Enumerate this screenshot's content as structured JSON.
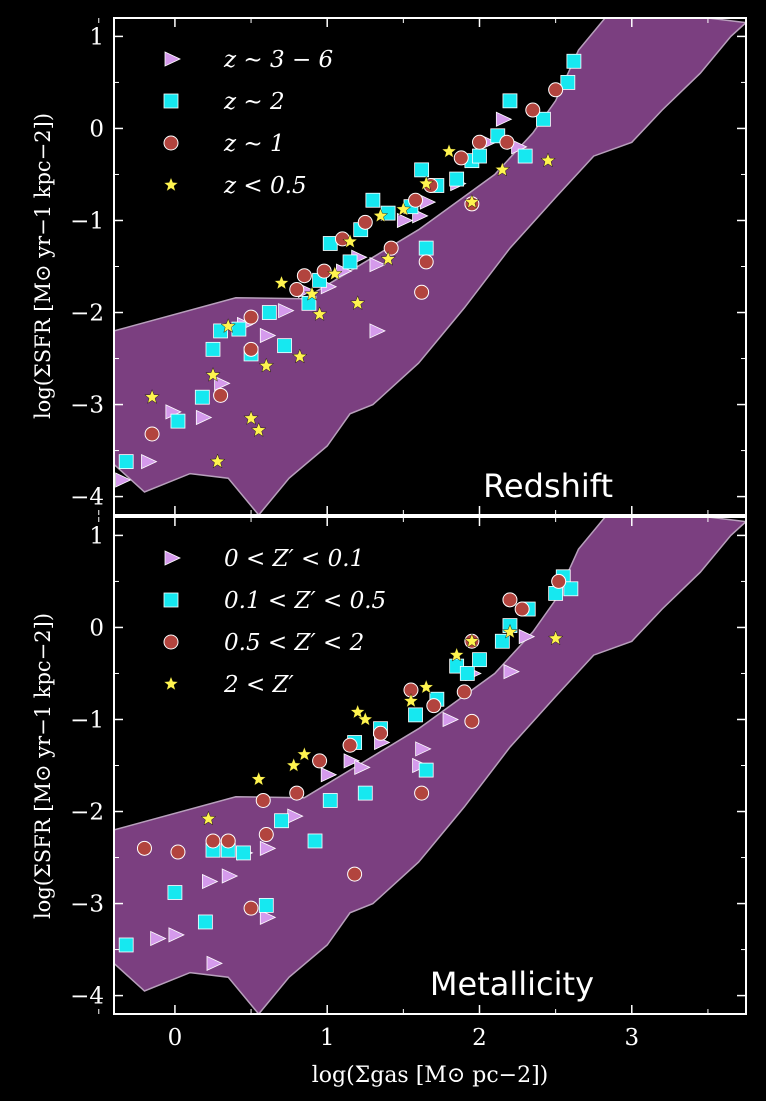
{
  "chart_data": {
    "type": "scatter",
    "xlabel": "log(Σgas [M⊙ pc−2])",
    "ylabel": "log(ΣSFR [M⊙ yr−1 kpc−2])",
    "xlim": [
      -0.4,
      3.75
    ],
    "ylim": [
      -4.2,
      1.2
    ],
    "x_ticks": [
      "0",
      "1",
      "2",
      "3"
    ],
    "y_ticks": [
      "−4",
      "−3",
      "−2",
      "−1",
      "0",
      "1"
    ],
    "grid": false,
    "colors": {
      "background": "#000000",
      "band": "#7b3f80",
      "band_edge": "#b8a0bc",
      "triangle": "#d59aec",
      "square": "#16e8f0",
      "circle": "#b2443e",
      "star": "#fff44f"
    },
    "band": {
      "upper": [
        [
          -0.4,
          -2.2
        ],
        [
          0.4,
          -1.84
        ],
        [
          0.85,
          -1.85
        ],
        [
          1.3,
          -1.4
        ],
        [
          1.6,
          -1.1
        ],
        [
          2.1,
          -0.5
        ],
        [
          2.35,
          -0.05
        ],
        [
          2.5,
          0.3
        ],
        [
          2.65,
          0.85
        ],
        [
          2.85,
          1.25
        ],
        [
          3.0,
          1.3
        ]
      ],
      "lower": [
        [
          3.75,
          1.15
        ],
        [
          3.65,
          1.0
        ],
        [
          3.45,
          0.6
        ],
        [
          3.2,
          0.2
        ],
        [
          3.0,
          -0.15
        ],
        [
          2.75,
          -0.3
        ],
        [
          2.5,
          -0.75
        ],
        [
          2.2,
          -1.3
        ],
        [
          1.9,
          -1.95
        ],
        [
          1.6,
          -2.55
        ],
        [
          1.3,
          -3.0
        ],
        [
          1.15,
          -3.1
        ],
        [
          1.0,
          -3.45
        ],
        [
          0.75,
          -3.8
        ],
        [
          0.55,
          -4.2
        ],
        [
          0.35,
          -3.8
        ],
        [
          0.1,
          -3.75
        ],
        [
          -0.2,
          -3.95
        ],
        [
          -0.4,
          -3.65
        ]
      ]
    },
    "panels": [
      {
        "label": "Redshift",
        "legend_position": "top-left",
        "series": [
          {
            "name": "z ∼ 3 − 6",
            "marker": "triangle",
            "points": [
              [
                -0.35,
                -3.82
              ],
              [
                -0.18,
                -3.62
              ],
              [
                -0.02,
                -3.08
              ],
              [
                0.18,
                -3.14
              ],
              [
                0.3,
                -2.77
              ],
              [
                0.45,
                -2.13
              ],
              [
                0.6,
                -2.25
              ],
              [
                0.72,
                -1.98
              ],
              [
                0.85,
                -1.76
              ],
              [
                1.0,
                -1.72
              ],
              [
                1.1,
                -1.55
              ],
              [
                1.2,
                -1.4
              ],
              [
                1.32,
                -1.48
              ],
              [
                1.32,
                -2.2
              ],
              [
                1.5,
                -1.0
              ],
              [
                1.6,
                -0.95
              ],
              [
                1.65,
                -0.8
              ],
              [
                1.85,
                -0.6
              ],
              [
                1.95,
                -0.35
              ],
              [
                2.05,
                -0.15
              ],
              [
                2.15,
                0.1
              ],
              [
                2.25,
                -0.2
              ]
            ]
          },
          {
            "name": "z ∼ 2",
            "marker": "square",
            "points": [
              [
                -0.32,
                -3.62
              ],
              [
                0.02,
                -3.18
              ],
              [
                0.18,
                -2.92
              ],
              [
                0.25,
                -2.4
              ],
              [
                0.3,
                -2.2
              ],
              [
                0.42,
                -2.18
              ],
              [
                0.5,
                -2.45
              ],
              [
                0.62,
                -2.0
              ],
              [
                0.72,
                -2.36
              ],
              [
                0.88,
                -1.9
              ],
              [
                0.95,
                -1.65
              ],
              [
                1.02,
                -1.25
              ],
              [
                1.15,
                -1.45
              ],
              [
                1.22,
                -1.1
              ],
              [
                1.3,
                -0.78
              ],
              [
                1.4,
                -0.92
              ],
              [
                1.55,
                -0.85
              ],
              [
                1.62,
                -0.45
              ],
              [
                1.65,
                -1.3
              ],
              [
                1.72,
                -0.62
              ],
              [
                1.85,
                -0.55
              ],
              [
                1.95,
                -0.35
              ],
              [
                2.0,
                -0.3
              ],
              [
                2.12,
                -0.08
              ],
              [
                2.2,
                0.3
              ],
              [
                2.3,
                -0.3
              ],
              [
                2.42,
                0.1
              ],
              [
                2.58,
                0.5
              ],
              [
                2.62,
                0.73
              ]
            ]
          },
          {
            "name": "z ∼ 1",
            "marker": "circle",
            "points": [
              [
                -0.15,
                -3.32
              ],
              [
                0.3,
                -2.9
              ],
              [
                0.5,
                -2.05
              ],
              [
                0.5,
                -2.4
              ],
              [
                0.8,
                -1.75
              ],
              [
                0.85,
                -1.6
              ],
              [
                0.98,
                -1.55
              ],
              [
                1.1,
                -1.2
              ],
              [
                1.25,
                -1.02
              ],
              [
                1.42,
                -1.3
              ],
              [
                1.58,
                -0.78
              ],
              [
                1.62,
                -1.78
              ],
              [
                1.65,
                -1.45
              ],
              [
                1.68,
                -0.62
              ],
              [
                1.88,
                -0.32
              ],
              [
                1.95,
                -0.82
              ],
              [
                2.0,
                -0.15
              ],
              [
                2.18,
                -0.15
              ],
              [
                2.35,
                0.2
              ],
              [
                2.5,
                0.42
              ]
            ]
          },
          {
            "name": "z < 0.5",
            "marker": "star",
            "points": [
              [
                -0.15,
                -2.92
              ],
              [
                0.25,
                -2.68
              ],
              [
                0.35,
                -2.15
              ],
              [
                0.5,
                -3.15
              ],
              [
                0.55,
                -3.28
              ],
              [
                0.6,
                -2.58
              ],
              [
                0.7,
                -1.68
              ],
              [
                0.82,
                -2.48
              ],
              [
                0.9,
                -1.8
              ],
              [
                0.95,
                -2.02
              ],
              [
                1.05,
                -1.58
              ],
              [
                1.15,
                -1.23
              ],
              [
                1.2,
                -1.9
              ],
              [
                1.35,
                -0.95
              ],
              [
                1.4,
                -1.42
              ],
              [
                1.5,
                -0.88
              ],
              [
                1.65,
                -0.6
              ],
              [
                1.8,
                -0.25
              ],
              [
                1.95,
                -0.8
              ],
              [
                2.15,
                -0.45
              ],
              [
                2.45,
                -0.35
              ],
              [
                0.28,
                -3.62
              ]
            ]
          }
        ]
      },
      {
        "label": "Metallicity",
        "legend_position": "top-left",
        "series": [
          {
            "name": "0 < Z′ < 0.1",
            "marker": "triangle",
            "points": [
              [
                -0.12,
                -3.38
              ],
              [
                0.0,
                -3.34
              ],
              [
                0.22,
                -2.76
              ],
              [
                0.25,
                -3.65
              ],
              [
                0.35,
                -2.7
              ],
              [
                0.45,
                -2.45
              ],
              [
                0.6,
                -2.4
              ],
              [
                0.6,
                -3.15
              ],
              [
                0.78,
                -2.05
              ],
              [
                1.0,
                -1.6
              ],
              [
                1.15,
                -1.45
              ],
              [
                1.22,
                -1.52
              ],
              [
                1.35,
                -1.25
              ],
              [
                1.6,
                -1.5
              ],
              [
                1.62,
                -1.32
              ],
              [
                1.8,
                -1.0
              ],
              [
                1.95,
                -0.5
              ],
              [
                2.2,
                -0.48
              ],
              [
                2.3,
                -0.1
              ]
            ]
          },
          {
            "name": "0.1 < Z′ < 0.5",
            "marker": "square",
            "points": [
              [
                -0.32,
                -3.45
              ],
              [
                0.0,
                -2.88
              ],
              [
                0.2,
                -3.2
              ],
              [
                0.25,
                -2.42
              ],
              [
                0.35,
                -2.42
              ],
              [
                0.45,
                -2.45
              ],
              [
                0.6,
                -3.02
              ],
              [
                0.7,
                -2.1
              ],
              [
                0.92,
                -2.32
              ],
              [
                1.02,
                -1.88
              ],
              [
                1.18,
                -1.25
              ],
              [
                1.25,
                -1.8
              ],
              [
                1.35,
                -1.1
              ],
              [
                1.58,
                -0.95
              ],
              [
                1.65,
                -1.55
              ],
              [
                1.72,
                -0.78
              ],
              [
                1.85,
                -0.42
              ],
              [
                1.92,
                -0.5
              ],
              [
                2.0,
                -0.35
              ],
              [
                2.15,
                -0.15
              ],
              [
                2.2,
                0.02
              ],
              [
                2.32,
                0.2
              ],
              [
                2.5,
                0.37
              ],
              [
                2.55,
                0.55
              ],
              [
                2.6,
                0.42
              ]
            ]
          },
          {
            "name": "0.5 < Z′ < 2",
            "marker": "circle",
            "points": [
              [
                -0.2,
                -2.4
              ],
              [
                0.02,
                -2.44
              ],
              [
                0.25,
                -2.32
              ],
              [
                0.35,
                -2.32
              ],
              [
                0.5,
                -3.05
              ],
              [
                0.58,
                -1.88
              ],
              [
                0.6,
                -2.25
              ],
              [
                0.8,
                -1.8
              ],
              [
                0.95,
                -1.45
              ],
              [
                1.15,
                -1.28
              ],
              [
                1.18,
                -2.68
              ],
              [
                1.35,
                -1.15
              ],
              [
                1.55,
                -0.68
              ],
              [
                1.62,
                -1.8
              ],
              [
                1.7,
                -0.85
              ],
              [
                1.9,
                -0.7
              ],
              [
                1.95,
                -1.02
              ],
              [
                1.95,
                -0.15
              ],
              [
                2.2,
                0.3
              ],
              [
                2.28,
                0.2
              ],
              [
                2.52,
                0.5
              ]
            ]
          },
          {
            "name": "2 < Z′",
            "marker": "star",
            "points": [
              [
                0.22,
                -2.08
              ],
              [
                0.55,
                -1.65
              ],
              [
                0.78,
                -1.5
              ],
              [
                0.85,
                -1.38
              ],
              [
                1.2,
                -0.92
              ],
              [
                1.25,
                -1.0
              ],
              [
                1.55,
                -0.8
              ],
              [
                1.65,
                -0.65
              ],
              [
                1.85,
                -0.3
              ],
              [
                1.95,
                -0.15
              ],
              [
                2.2,
                -0.05
              ],
              [
                2.5,
                -0.12
              ]
            ]
          }
        ]
      }
    ]
  }
}
